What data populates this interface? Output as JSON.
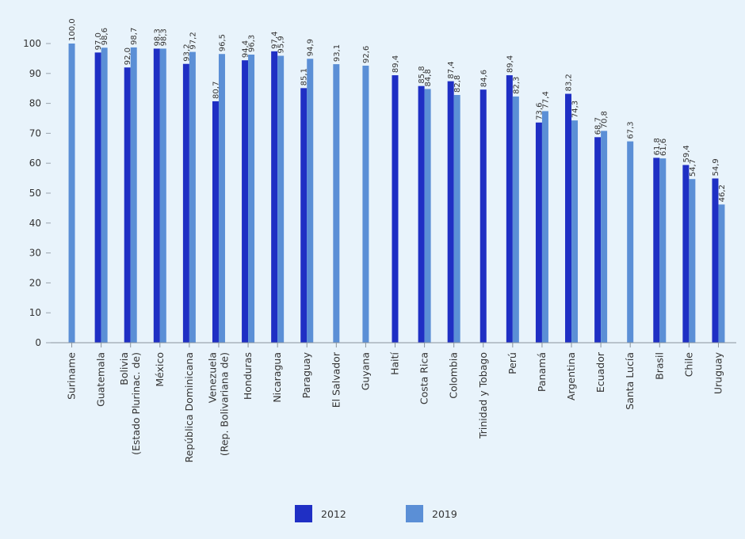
{
  "chart_data": {
    "type": "bar",
    "title": "",
    "xlabel": "",
    "ylabel": "",
    "ylim": [
      0,
      100
    ],
    "yticks": [
      0,
      10,
      20,
      30,
      40,
      50,
      60,
      70,
      80,
      90,
      100
    ],
    "grid": false,
    "legend_position": "bottom-center",
    "categories": [
      [
        "Suriname"
      ],
      [
        "Guatemala"
      ],
      [
        "Bolivia",
        "(Estado Plurinac. de)"
      ],
      [
        "México"
      ],
      [
        "República Dominicana"
      ],
      [
        "Venezuela",
        "(Rep. Bolivariana de)"
      ],
      [
        "Honduras"
      ],
      [
        "Nicaragua"
      ],
      [
        "Paraguay"
      ],
      [
        "El Salvador"
      ],
      [
        "Guyana"
      ],
      [
        "Haití"
      ],
      [
        "Costa Rica"
      ],
      [
        "Colombia"
      ],
      [
        "Trinidad y Tobago"
      ],
      [
        "Perú"
      ],
      [
        "Panamá"
      ],
      [
        "Argentina"
      ],
      [
        "Ecuador"
      ],
      [
        "Santa Lucía"
      ],
      [
        "Brasil"
      ],
      [
        "Chile"
      ],
      [
        "Uruguay"
      ]
    ],
    "series": [
      {
        "name": "2012",
        "color": "#1f2fc4",
        "values": [
          null,
          97.0,
          92.0,
          98.3,
          93.2,
          80.7,
          94.4,
          97.4,
          85.1,
          null,
          null,
          89.4,
          85.8,
          87.4,
          84.6,
          89.4,
          73.6,
          83.2,
          68.7,
          null,
          61.8,
          59.4,
          54.9
        ],
        "labels": [
          null,
          "97,0",
          "92,0",
          "98,3",
          "93,2",
          "80,7",
          "94,4",
          "97,4",
          "85,1",
          null,
          null,
          "89,4",
          "85,8",
          "87,4",
          "84,6",
          "89,4",
          "73,6",
          "83,2",
          "68,7",
          null,
          "61,8",
          "59,4",
          "54,9"
        ]
      },
      {
        "name": "2019",
        "color": "#5b8fd6",
        "values": [
          100.0,
          98.6,
          98.7,
          98.3,
          97.2,
          96.5,
          96.3,
          95.9,
          94.9,
          93.1,
          92.6,
          null,
          84.8,
          82.8,
          null,
          82.3,
          77.4,
          74.3,
          70.8,
          67.3,
          61.6,
          54.7,
          46.2
        ],
        "labels": [
          "100,0",
          "98,6",
          "98,7",
          "98,3",
          "97,2",
          "96,5",
          "96,3",
          "95,9",
          "94,9",
          "93,1",
          "92,6",
          null,
          "84,8",
          "82,8",
          null,
          "82,3",
          "77,4",
          "74,3",
          "70,8",
          "67,3",
          "61,6",
          "54,7",
          "46,2"
        ]
      }
    ]
  }
}
